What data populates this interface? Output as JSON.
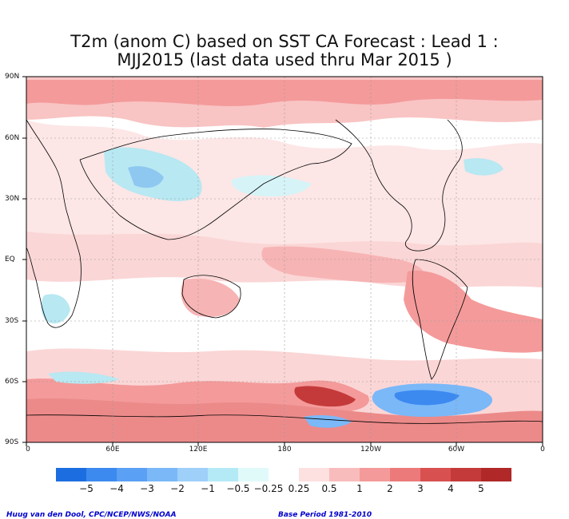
{
  "title_line1": "T2m (anom C) based on SST CA Forecast : Lead 1 :",
  "title_line2": "MJJ2015 (last data used thru Mar 2015 )",
  "y_ticks": [
    "90N",
    "60N",
    "30N",
    "EQ",
    "30S",
    "60S",
    "90S"
  ],
  "x_ticks": [
    "0",
    "60E",
    "120E",
    "180",
    "120W",
    "60W",
    "0"
  ],
  "colorbar": {
    "labels": [
      "−5",
      "−4",
      "−3",
      "−2",
      "−1",
      "−0.5",
      "−0.25",
      "0.25",
      "0.5",
      "1",
      "2",
      "3",
      "4",
      "5"
    ],
    "colors": [
      "#1c6ee0",
      "#3c8af0",
      "#5aa0f5",
      "#7ab8f8",
      "#9ed0fa",
      "#b4eaf6",
      "#e0fafa",
      "#ffffff",
      "#fde0e0",
      "#f9bcbc",
      "#f49a9a",
      "#ec7a7a",
      "#d95050",
      "#c43a3a",
      "#b02828"
    ]
  },
  "footer_left": "Huug van den Dool, CPC/NCEP/NWS/NOAA",
  "footer_right": "Base Period 1981-2010"
}
